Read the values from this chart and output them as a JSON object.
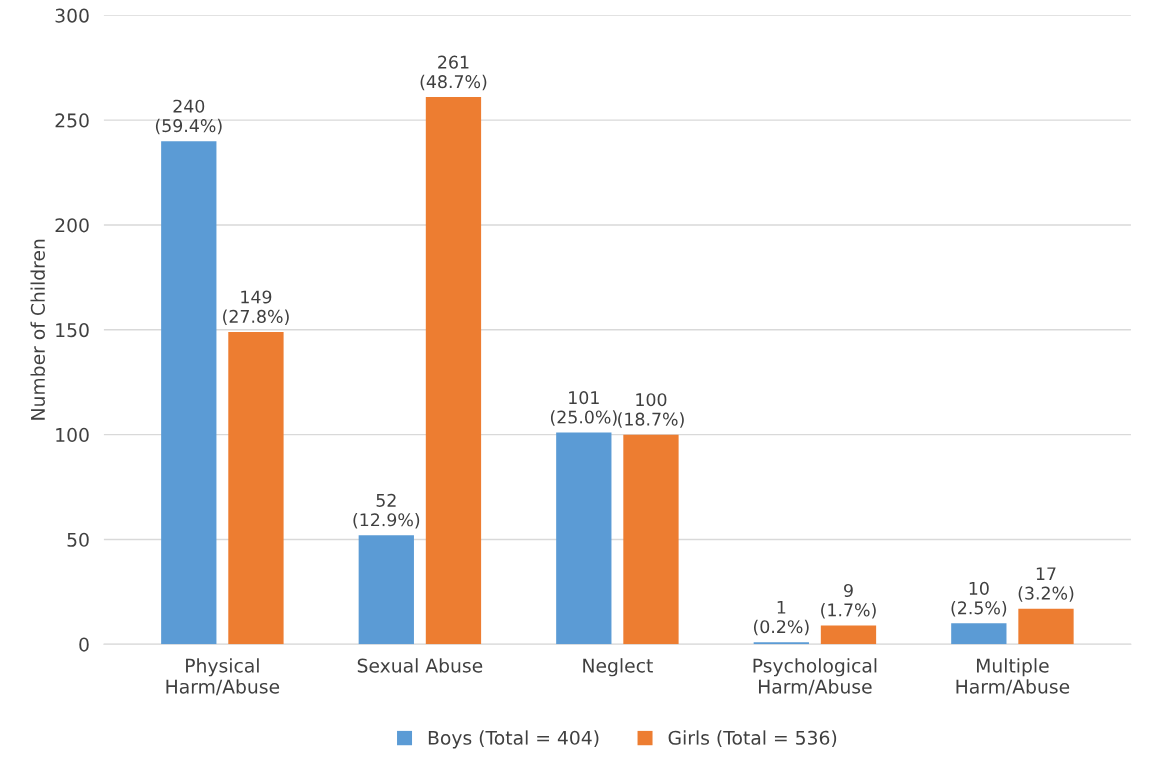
{
  "chart_data": {
    "type": "bar",
    "ylabel": "Number of Children",
    "categories": [
      "Physical\nHarm/Abuse",
      "Sexual Abuse",
      "Neglect",
      "Psychological\nHarm/Abuse",
      "Multiple\nHarm/Abuse"
    ],
    "series": [
      {
        "name": "Boys (Total = 404)",
        "color": "#5b9bd5",
        "values": [
          240,
          52,
          101,
          1,
          10
        ],
        "value_labels": [
          "240\n(59.4%)",
          "52\n(12.9%)",
          "101\n(25.0%)",
          "1\n(0.2%)",
          "10\n(2.5%)"
        ]
      },
      {
        "name": "Girls (Total = 536)",
        "color": "#ed7d31",
        "values": [
          149,
          261,
          100,
          9,
          17
        ],
        "value_labels": [
          "149\n(27.8%)",
          "261\n(48.7%)",
          "100\n(18.7%)",
          "9\n(1.7%)",
          "17\n(3.2%)"
        ]
      }
    ],
    "ylim": [
      0,
      300
    ],
    "yticks": [
      0,
      50,
      100,
      150,
      200,
      250,
      300
    ],
    "grid": "y",
    "legend": "bottom"
  }
}
